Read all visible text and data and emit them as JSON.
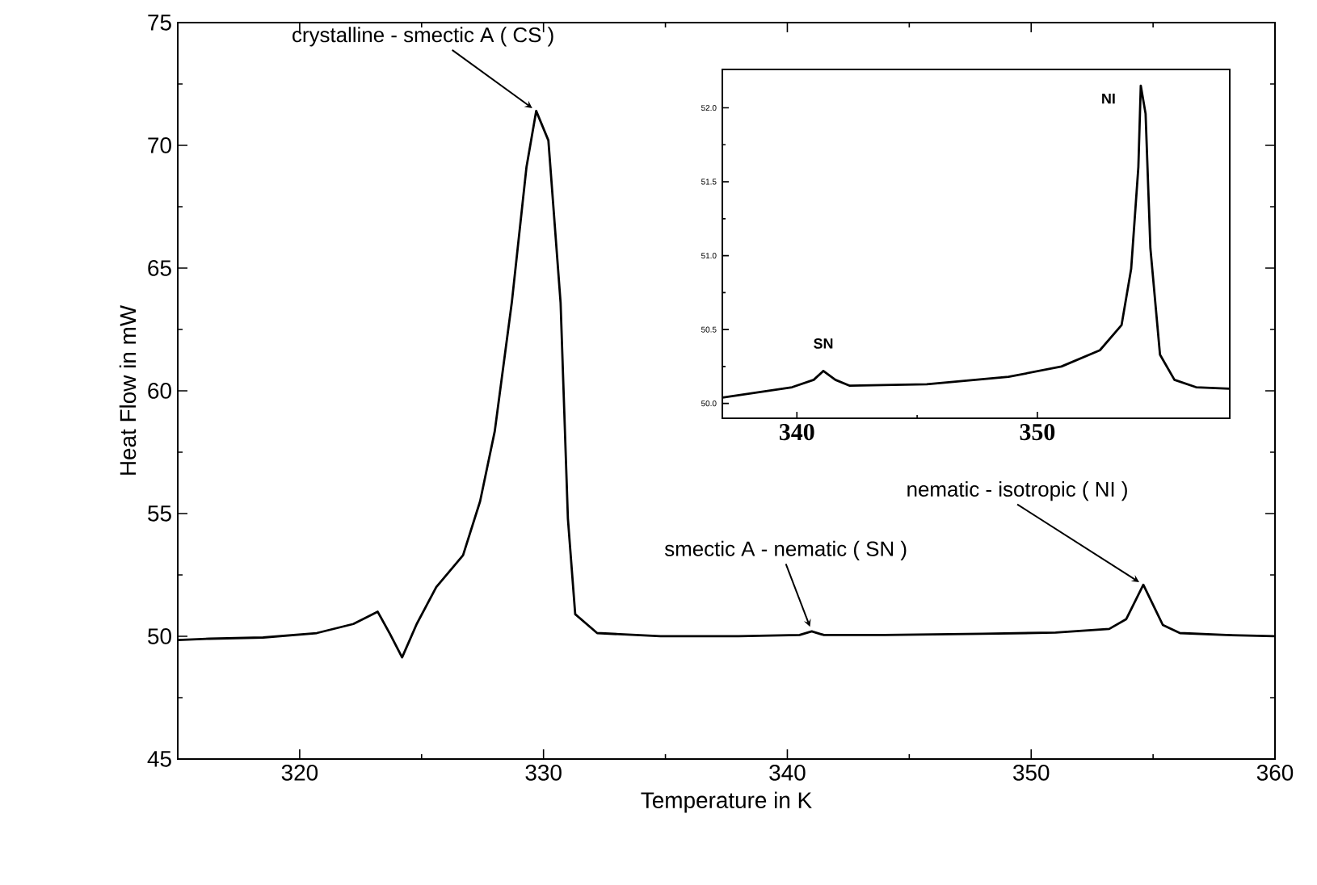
{
  "chart_data": [
    {
      "type": "line",
      "xlabel": "Temperature in K",
      "ylabel": "Heat Flow in mW",
      "xlim": [
        315,
        360
      ],
      "ylim": [
        45,
        75
      ],
      "xticks": [
        320,
        330,
        340,
        350,
        360
      ],
      "yticks": [
        45,
        50,
        55,
        60,
        65,
        70,
        75
      ],
      "series": [
        {
          "color": "#000000",
          "x": [
            315,
            316.3,
            318.5,
            320.7,
            322.2,
            323.2,
            323.7,
            324.2,
            324.8,
            325.6,
            326.7,
            327.4,
            328.0,
            328.7,
            329.3,
            329.7,
            330.2,
            330.7,
            331.0,
            331.3,
            332.2,
            334.8,
            338,
            340.5,
            341,
            341.5,
            344,
            348,
            351,
            353.2,
            353.9,
            354.6,
            355.4,
            356.1,
            358,
            360
          ],
          "values": [
            49.85,
            49.9,
            49.95,
            50.13,
            50.5,
            51.0,
            50.1,
            49.14,
            50.5,
            52.0,
            53.3,
            55.5,
            58.35,
            63.6,
            69.1,
            71.4,
            70.2,
            63.6,
            54.8,
            50.9,
            50.13,
            50.0,
            50.0,
            50.05,
            50.2,
            50.05,
            50.05,
            50.1,
            50.15,
            50.3,
            50.7,
            52.1,
            50.46,
            50.13,
            50.05,
            50.0
          ]
        }
      ],
      "annotations": [
        {
          "text": "crystalline - smectic A ( CS )",
          "x": 329.7,
          "y": 71.4
        },
        {
          "text": "smectic A - nematic ( SN )",
          "x": 341,
          "y": 50.2
        },
        {
          "text": "nematic - isotropic ( NI )",
          "x": 354.6,
          "y": 52.1
        }
      ]
    },
    {
      "type": "line",
      "xlim": [
        336.9,
        358.0
      ],
      "ylim": [
        49.9,
        52.26
      ],
      "xticks": [
        340,
        350
      ],
      "yticks": [
        {
          "value": 50.0,
          "label": "50.0"
        },
        {
          "value": 50.5,
          "label": "50.5"
        },
        {
          "value": 51.0,
          "label": "51.0"
        },
        {
          "value": 51.5,
          "label": "51.5"
        },
        {
          "value": 52.0,
          "label": "52.0"
        }
      ],
      "series": [
        {
          "color": "#000000",
          "x": [
            336.9,
            339.8,
            340.7,
            341.1,
            341.6,
            342.2,
            345.4,
            348.8,
            351.0,
            352.6,
            353.5,
            353.9,
            354.2,
            354.3,
            354.5,
            354.7,
            355.1,
            355.7,
            356.6,
            358.0
          ],
          "values": [
            50.04,
            50.11,
            50.16,
            50.22,
            50.16,
            50.12,
            50.13,
            50.18,
            50.25,
            50.36,
            50.53,
            50.91,
            51.6,
            52.15,
            51.96,
            51.05,
            50.33,
            50.16,
            50.11,
            50.1
          ]
        }
      ],
      "annotations": [
        {
          "text": "SN",
          "x": 341.1,
          "y": 50.22
        },
        {
          "text": "NI",
          "x": 354.3,
          "y": 52.15
        }
      ]
    }
  ]
}
